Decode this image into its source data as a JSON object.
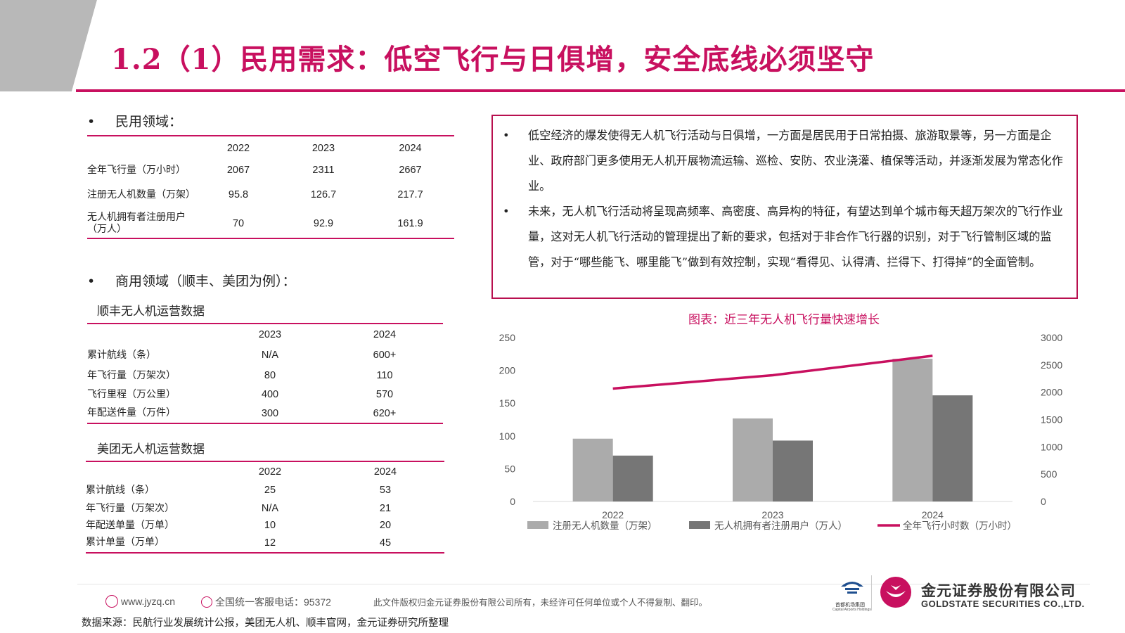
{
  "title": "1.2（1）民用需求：低空飞行与日俱增，安全底线必须坚守",
  "civil": {
    "heading": "民用领域：",
    "years": [
      "2022",
      "2023",
      "2024"
    ],
    "rows": [
      {
        "label": "全年飞行量（万小时）",
        "values": [
          "2067",
          "2311",
          "2667"
        ]
      },
      {
        "label": "注册无人机数量（万架）",
        "values": [
          "95.8",
          "126.7",
          "217.7"
        ]
      },
      {
        "label": "无人机拥有者注册用户（万人）",
        "values": [
          "70",
          "92.9",
          "161.9"
        ]
      }
    ]
  },
  "commercial": {
    "heading": "商用领域（顺丰、美团为例）：",
    "sf": {
      "title": "顺丰无人机运营数据",
      "years": [
        "2023",
        "2024"
      ],
      "rows": [
        {
          "label": "累计航线（条）",
          "values": [
            "N/A",
            "600+"
          ]
        },
        {
          "label": "年飞行量（万架次）",
          "values": [
            "80",
            "110"
          ]
        },
        {
          "label": "飞行里程（万公里）",
          "values": [
            "400",
            "570"
          ]
        },
        {
          "label": "年配送件量（万件）",
          "values": [
            "300",
            "620+"
          ]
        }
      ]
    },
    "meituan": {
      "title": "美团无人机运营数据",
      "years": [
        "2022",
        "2024"
      ],
      "rows": [
        {
          "label": "累计航线（条）",
          "values": [
            "25",
            "53"
          ]
        },
        {
          "label": "年飞行量（万架次）",
          "values": [
            "N/A",
            "21"
          ]
        },
        {
          "label": "年配送单量（万单）",
          "values": [
            "10",
            "20"
          ]
        },
        {
          "label": "累计单量（万单）",
          "values": [
            "12",
            "45"
          ]
        }
      ]
    }
  },
  "textbox": {
    "bullets": [
      "低空经济的爆发使得无人机飞行活动与日俱增，一方面是居民用于日常拍摄、旅游取景等，另一方面是企业、政府部门更多使用无人机开展物流运输、巡检、安防、农业浇灌、植保等活动，并逐渐发展为常态化作业。",
      "未来，无人机飞行活动将呈现高频率、高密度、高异构的特征，有望达到单个城市每天超万架次的飞行作业量，这对无人机飞行活动的管理提出了新的要求，包括对于非合作飞行器的识别，对于飞行管制区域的监管，对于“哪些能飞、哪里能飞”做到有效控制，实现“看得见、认得清、拦得下、打得掉”的全面管制。"
    ]
  },
  "chart_data": {
    "type": "bar",
    "title": "图表：近三年无人机飞行量快速增长",
    "categories": [
      "2022",
      "2023",
      "2024"
    ],
    "series": [
      {
        "name": "注册无人机数量（万架）",
        "type": "bar",
        "axis": "left",
        "color": "#ababab",
        "values": [
          95.8,
          126.7,
          217.7
        ]
      },
      {
        "name": "无人机拥有者注册用户（万人）",
        "type": "bar",
        "axis": "left",
        "color": "#767676",
        "values": [
          70,
          92.9,
          161.9
        ]
      },
      {
        "name": "全年飞行小时数（万小时）",
        "type": "line",
        "axis": "right",
        "color": "#c8105f",
        "values": [
          2067,
          2311,
          2667
        ]
      }
    ],
    "y_left": {
      "min": 0,
      "max": 250,
      "ticks": [
        "0",
        "50",
        "100",
        "150",
        "200",
        "250"
      ]
    },
    "y_right": {
      "min": 0,
      "max": 3000,
      "ticks": [
        "0",
        "500",
        "1000",
        "1500",
        "2000",
        "2500",
        "3000"
      ]
    },
    "legend": "bottom",
    "grid": false
  },
  "footer": {
    "website": "www.jyzq.cn",
    "hotline": "全国统一客服电话：95372",
    "notice": "此文件版权归金元证券股份有限公司所有，未经许可任何单位或个人不得复制、翻印。",
    "airport_logo": "首都机场集团",
    "airport_logo_en": "Capital Airports Holdings",
    "company_cn": "金元证券股份有限公司",
    "company_en": "GOLDSTATE SECURITIES CO.,LTD."
  },
  "source": "数据来源：民航行业发展统计公报，美团无人机、顺丰官网，金元证券研究所整理",
  "colors": {
    "accent": "#c8105f",
    "bar_light": "#ababab",
    "bar_dark": "#767676"
  }
}
